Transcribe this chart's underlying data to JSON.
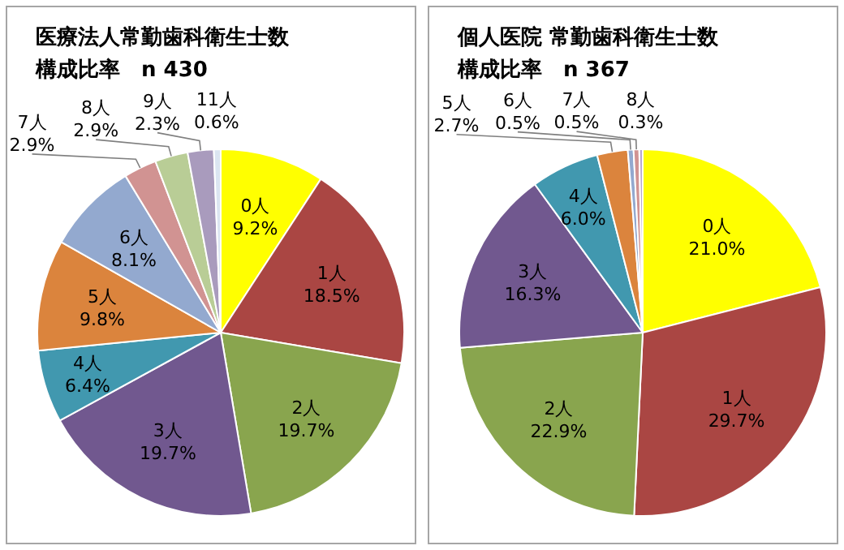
{
  "chart_data": [
    {
      "type": "pie",
      "title": "医療法人常勤歯科衛生士数",
      "subtitle": "構成比率　n 430",
      "categories": [
        "0人",
        "1人",
        "2人",
        "3人",
        "4人",
        "5人",
        "6人",
        "7人",
        "8人",
        "9人",
        "11人"
      ],
      "values": [
        9.2,
        18.5,
        19.7,
        19.7,
        6.4,
        9.8,
        8.1,
        2.9,
        2.9,
        2.3,
        0.6
      ],
      "value_labels": [
        "9.2%",
        "18.5%",
        "19.7%",
        "19.7%",
        "6.4%",
        "9.8%",
        "8.1%",
        "2.9%",
        "2.9%",
        "2.3%",
        "0.6%"
      ],
      "colors": [
        "#ffff00",
        "#aa4643",
        "#89a54e",
        "#71588f",
        "#4198af",
        "#db843d",
        "#93a9cf",
        "#d19392",
        "#b9cd96",
        "#a99bbd",
        "#dbe5f1"
      ]
    },
    {
      "type": "pie",
      "title": "個人医院 常勤歯科衛生士数",
      "subtitle": "構成比率　n 367",
      "categories": [
        "0人",
        "1人",
        "2人",
        "3人",
        "4人",
        "5人",
        "6人",
        "7人",
        "8人"
      ],
      "values": [
        21.0,
        29.7,
        22.9,
        16.3,
        6.0,
        2.7,
        0.5,
        0.5,
        0.3
      ],
      "value_labels": [
        "21.0%",
        "29.7%",
        "22.9%",
        "16.3%",
        "6.0%",
        "2.7%",
        "0.5%",
        "0.5%",
        "0.3%"
      ],
      "colors": [
        "#ffff00",
        "#aa4643",
        "#89a54e",
        "#71588f",
        "#4198af",
        "#db843d",
        "#93a9cf",
        "#d19392",
        "#b9a8d0"
      ]
    }
  ]
}
